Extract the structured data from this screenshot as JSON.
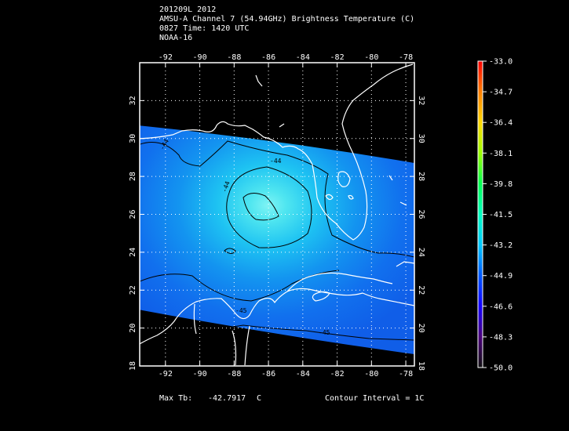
{
  "header": {
    "line1": "201209L 2012",
    "line2": "AMSU-A Channel 7 (54.94GHz) Brightness Temperature (C)",
    "line3": "0827 Time: 1420 UTC",
    "line4": "NOAA-16"
  },
  "map": {
    "lon_ticks": [
      "-92",
      "-90",
      "-88",
      "-86",
      "-84",
      "-82",
      "-80",
      "-78"
    ],
    "lat_ticks": [
      "18",
      "20",
      "22",
      "24",
      "26",
      "28",
      "30",
      "32"
    ],
    "lon_range": [
      -93.5,
      -77.5
    ],
    "lat_range": [
      18,
      34
    ],
    "contour_labels": [
      "-44",
      "-44",
      "-44",
      "-45",
      "-45"
    ]
  },
  "colorbar": {
    "labels": [
      "-33.0",
      "-34.7",
      "-36.4",
      "-38.1",
      "-39.8",
      "-41.5",
      "-43.2",
      "-44.9",
      "-46.6",
      "-48.3",
      "-50.0"
    ],
    "colors": [
      "#ff0000",
      "#ff7f00",
      "#ffd800",
      "#9cff00",
      "#00ff50",
      "#00ffc0",
      "#00c8ff",
      "#0058ff",
      "#1400ff",
      "#4a007a",
      "#111111"
    ]
  },
  "footer": {
    "max_label": "Max Tb:",
    "max_value": "-42.7917",
    "max_unit": "C",
    "contour_interval": "Contour Interval = 1C"
  }
}
